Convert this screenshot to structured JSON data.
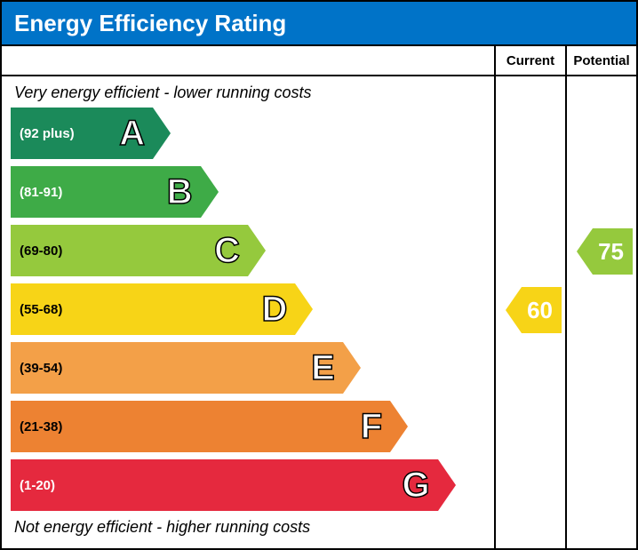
{
  "title": "Energy Efficiency Rating",
  "title_bg": "#0073c8",
  "title_color": "#ffffff",
  "columns": {
    "current": "Current",
    "potential": "Potential"
  },
  "top_caption": "Very energy efficient - lower running costs",
  "bottom_caption": "Not energy efficient - higher running costs",
  "chart": {
    "band_height": 58,
    "band_gap": 8,
    "bands": [
      {
        "letter": "A",
        "range": "(92 plus)",
        "width_pct": 30,
        "color": "#1b8a5a",
        "text_color": "#ffffff"
      },
      {
        "letter": "B",
        "range": "(81-91)",
        "width_pct": 40,
        "color": "#3eab47",
        "text_color": "#ffffff"
      },
      {
        "letter": "C",
        "range": "(69-80)",
        "width_pct": 50,
        "color": "#95c93d",
        "text_color": "#000000"
      },
      {
        "letter": "D",
        "range": "(55-68)",
        "width_pct": 60,
        "color": "#f7d417",
        "text_color": "#000000"
      },
      {
        "letter": "E",
        "range": "(39-54)",
        "width_pct": 70,
        "color": "#f3a048",
        "text_color": "#000000"
      },
      {
        "letter": "F",
        "range": "(21-38)",
        "width_pct": 80,
        "color": "#ed8232",
        "text_color": "#000000"
      },
      {
        "letter": "G",
        "range": "(1-20)",
        "width_pct": 90,
        "color": "#e5293e",
        "text_color": "#ffffff"
      }
    ]
  },
  "current": {
    "value": "60",
    "band_index": 3,
    "color": "#f7d417",
    "text_color": "#ffffff"
  },
  "potential": {
    "value": "75",
    "band_index": 2,
    "color": "#95c93d",
    "text_color": "#ffffff"
  }
}
